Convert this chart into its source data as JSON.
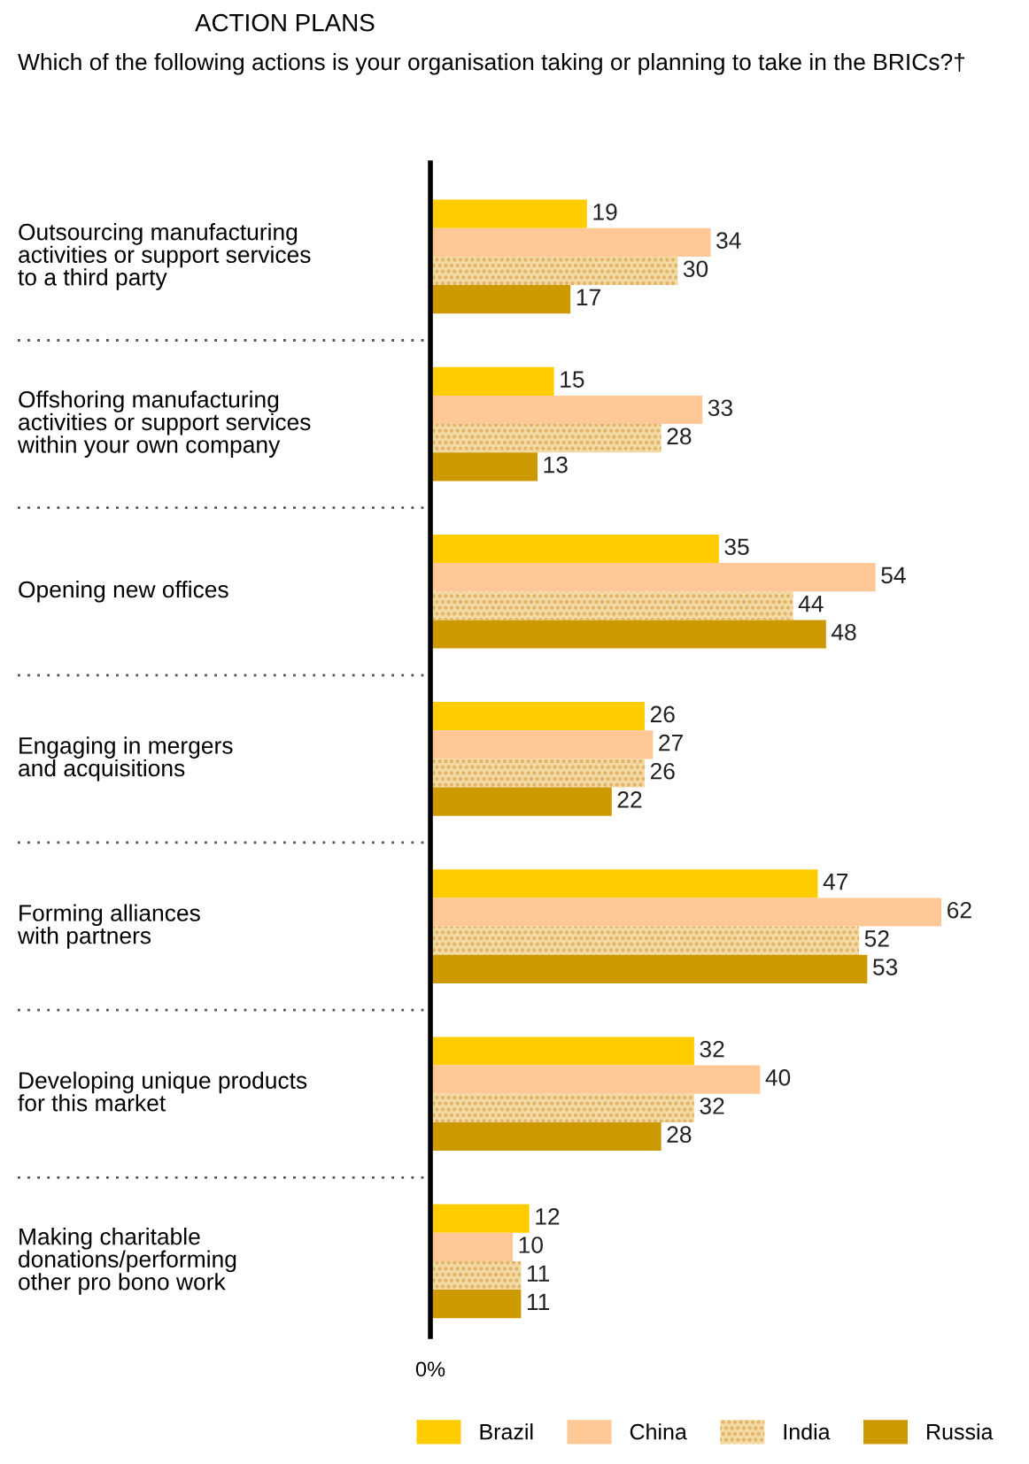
{
  "chart_data": {
    "type": "bar",
    "orientation": "horizontal",
    "title": "ACTION PLANS",
    "subtitle": "Which of the following actions is your organisation taking or planning to take in the BRICs?†",
    "categories": [
      "Outsourcing manufacturing\nactivities or support services\nto a third party",
      "Offshoring manufacturing\nactivities or support services\nwithin your own company",
      "Opening new offices",
      "Engaging in mergers\nand acquisitions",
      "Forming alliances\nwith partners",
      "Developing unique products\nfor this market",
      "Making charitable\ndonations/performing\nother pro bono work"
    ],
    "series": [
      {
        "name": "Brazil",
        "color": "#ffcc00",
        "values": [
          19,
          15,
          35,
          26,
          47,
          32,
          12
        ]
      },
      {
        "name": "China",
        "color": "#ffc896",
        "values": [
          34,
          33,
          54,
          27,
          62,
          40,
          10
        ]
      },
      {
        "name": "India",
        "color": "#f3d9a4",
        "values": [
          30,
          28,
          44,
          26,
          52,
          32,
          11
        ]
      },
      {
        "name": "Russia",
        "color": "#cc9900",
        "values": [
          17,
          13,
          48,
          22,
          53,
          28,
          11
        ]
      }
    ],
    "annotations": [
      "0%"
    ],
    "data_labels": true,
    "legend": "bottom"
  }
}
